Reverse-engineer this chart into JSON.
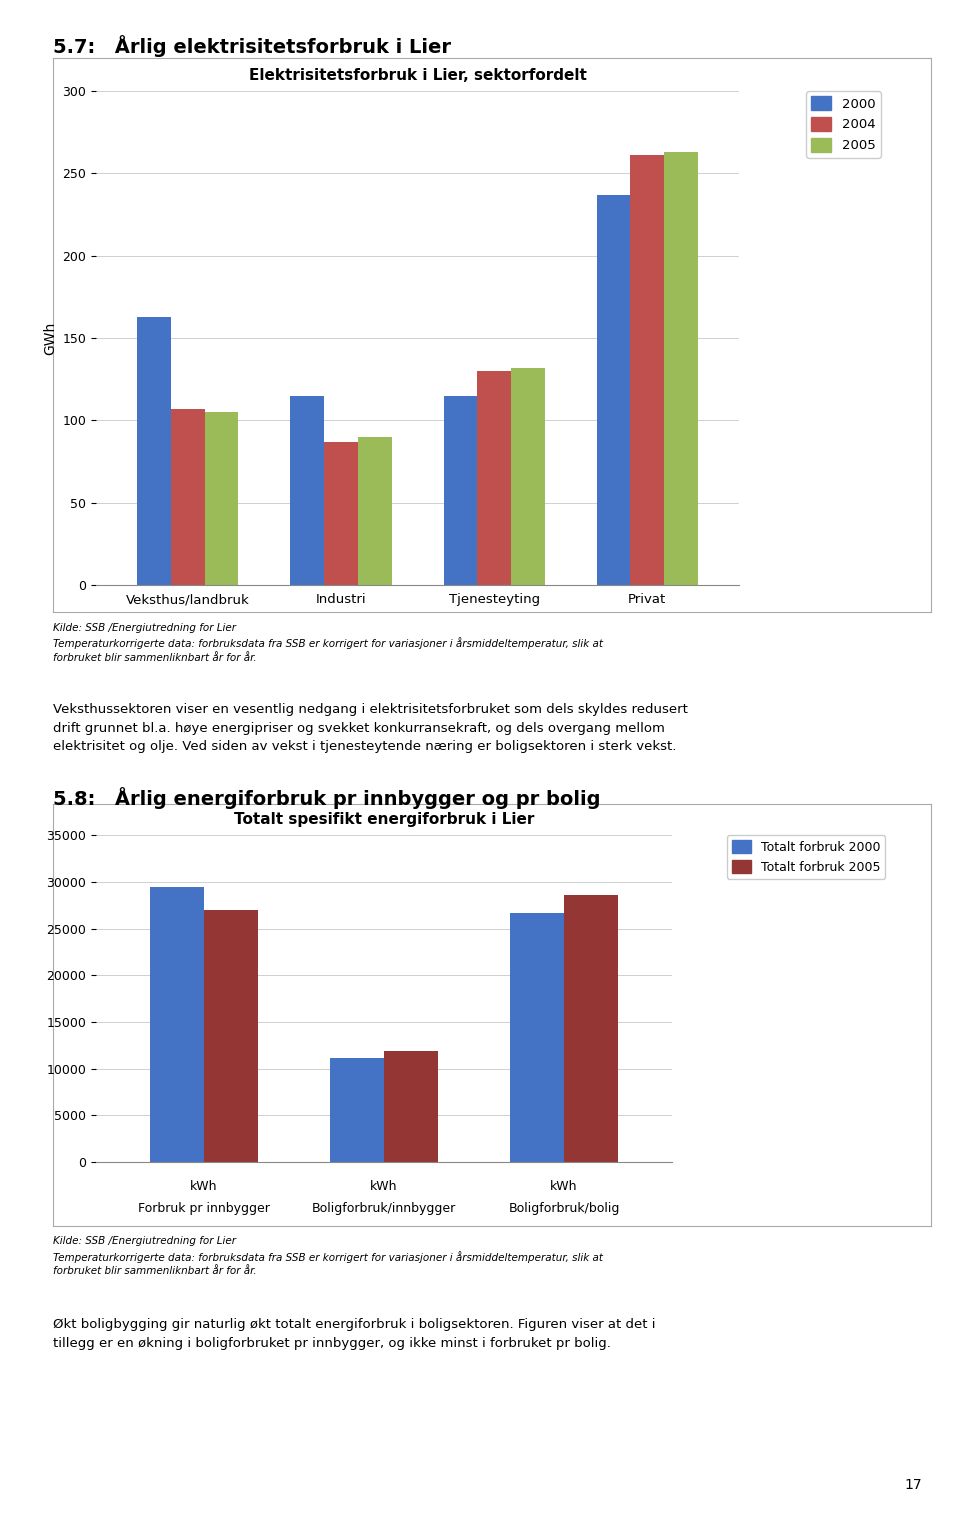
{
  "chart1": {
    "title": "Elektrisitetsforbruk i Lier, sektorfordelt",
    "ylabel": "GWh",
    "categories": [
      "Veksthus/landbruk",
      "Industri",
      "Tjenesteyting",
      "Privat"
    ],
    "series": {
      "2000": [
        163,
        115,
        115,
        237
      ],
      "2004": [
        107,
        87,
        130,
        261
      ],
      "2005": [
        105,
        90,
        132,
        263
      ]
    },
    "colors": {
      "2000": "#4472C4",
      "2004": "#C0504D",
      "2005": "#9BBB59"
    },
    "ylim": [
      0,
      300
    ],
    "yticks": [
      0,
      50,
      100,
      150,
      200,
      250,
      300
    ]
  },
  "chart2": {
    "title": "Totalt spesifikt energiforbruk i Lier",
    "categories": [
      "Forbruk pr innbygger",
      "Boligforbruk/innbygger",
      "Boligforbruk/bolig"
    ],
    "series": {
      "Totalt forbruk 2000": [
        29500,
        11100,
        26700
      ],
      "Totalt forbruk 2005": [
        27000,
        11900,
        28600
      ]
    },
    "colors": {
      "Totalt forbruk 2000": "#4472C4",
      "Totalt forbruk 2005": "#943634"
    },
    "ylim": [
      0,
      35000
    ],
    "yticks": [
      0,
      5000,
      10000,
      15000,
      20000,
      25000,
      30000,
      35000
    ]
  },
  "heading1": "5.7: Årlig elektrisitetsforbruk i Lier",
  "heading2": "5.8: Årlig energiforbruk pr innbygger og pr bolig",
  "source_text": "Kilde: SSB /Energiutredning for Lier\nTemperaturkorrigerte data: forbruksdata fra SSB er korrigert for variasjoner i årsmiddeltemperatur, slik at\nforbruket blir sammenliknbart år for år.",
  "body_text1": "Veksthussektoren viser en vesentlig nedgang i elektrisitetsforbruket som dels skyldes redusert\ndrift grunnet bl.a. høye energipriser og svekket konkurransekraft, og dels overgang mellom\nelektrisitet og olje. Ved siden av vekst i tjenesteytende næring er boligsektoren i sterk vekst.",
  "body_text2": "Økt boligbygging gir naturlig økt totalt energiforbruk i boligsektoren. Figuren viser at det i\ntillegg er en økning i boligforbruket pr innbygger, og ikke minst i forbruket pr bolig.",
  "page_number": "17",
  "background_color": "#FFFFFF",
  "chart_border_color": "#AAAAAA",
  "grid_color": "#D0D0D0"
}
